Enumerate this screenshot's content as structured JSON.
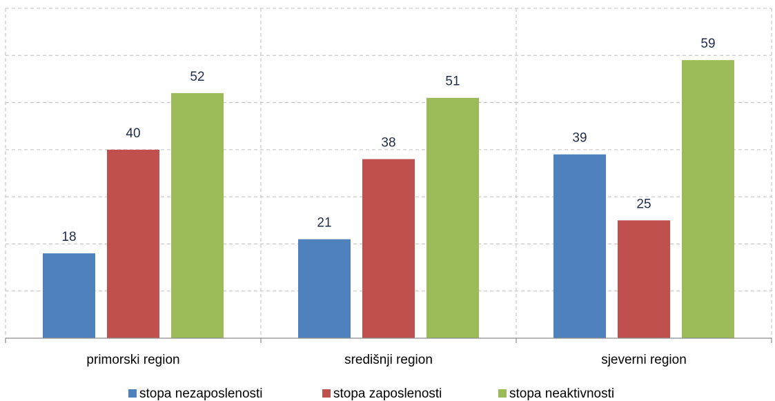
{
  "chart_data": {
    "type": "bar",
    "categories": [
      "primorski region",
      "središnji region",
      "sjeverni region"
    ],
    "series": [
      {
        "name": "stopa nezaposlenosti",
        "values": [
          18,
          21,
          39
        ],
        "color": "#4f81bd"
      },
      {
        "name": "stopa zaposlenosti",
        "values": [
          40,
          38,
          25
        ],
        "color": "#c0504d"
      },
      {
        "name": "stopa neaktivnosti",
        "values": [
          52,
          51,
          59
        ],
        "color": "#9bbb59"
      }
    ],
    "ylim": [
      0,
      70
    ],
    "y_grid_step": 10,
    "grid": true,
    "legend_position": "bottom",
    "data_labels": true
  }
}
